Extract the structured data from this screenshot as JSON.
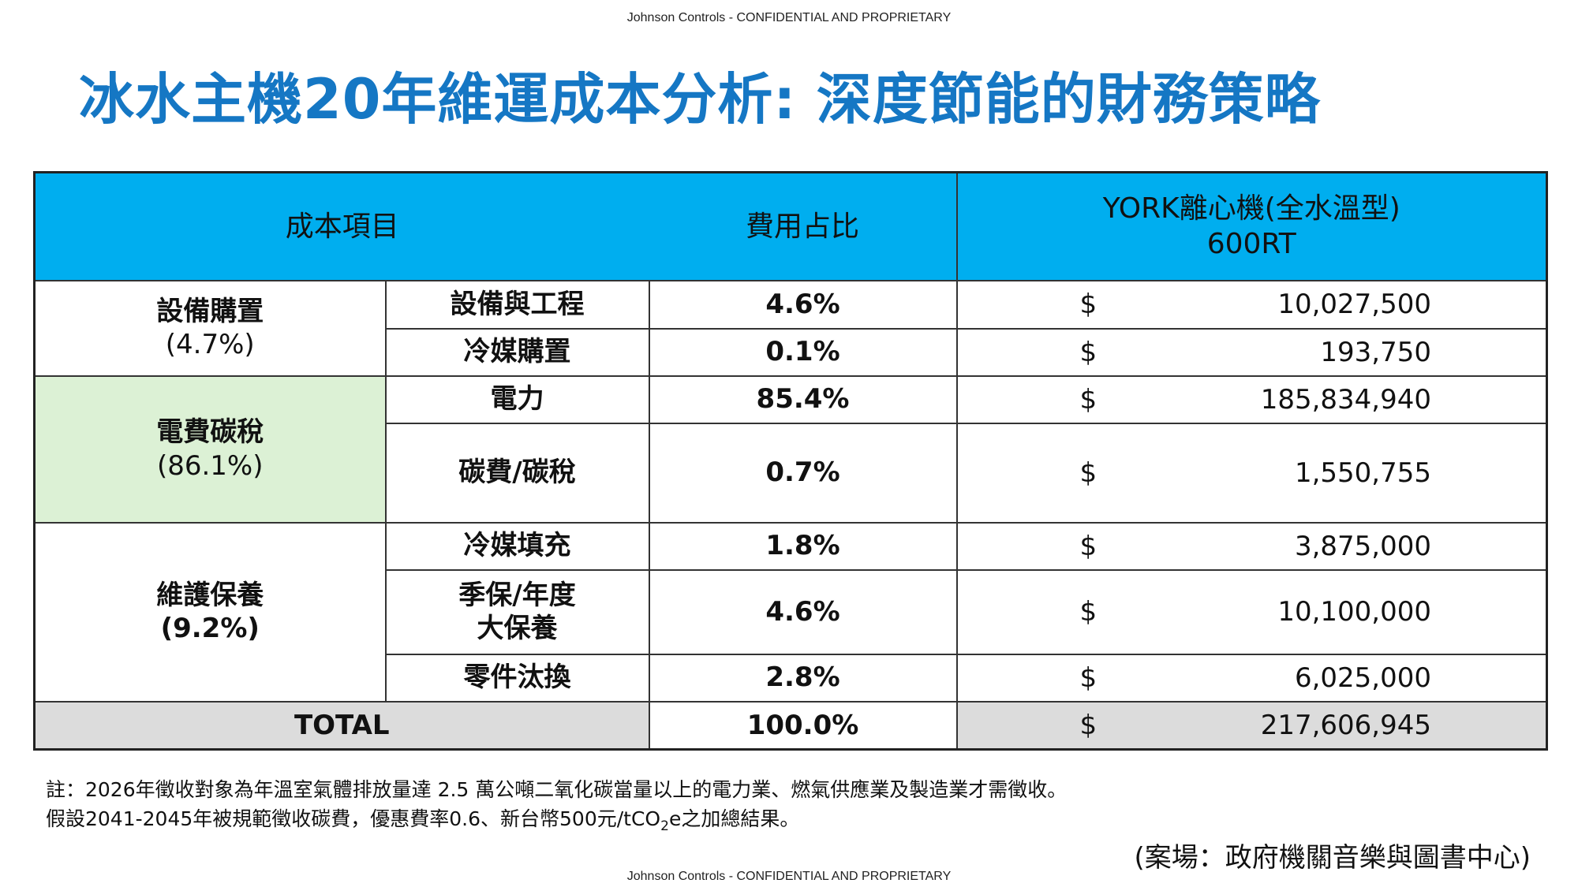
{
  "confidential": "Johnson Controls - CONFIDENTIAL AND PROPRIETARY",
  "title": "冰水主機20年維運成本分析: 深度節能的財務策略",
  "table": {
    "headers": {
      "cost_item": "成本項目",
      "ratio": "費用占比",
      "york_line1": "YORK離心機(全水溫型)",
      "york_line2": "600RT"
    },
    "groups": [
      {
        "label": "設備購置",
        "pct": "(4.7%)"
      },
      {
        "label": "電費碳稅",
        "pct": "(86.1%)"
      },
      {
        "label": "維護保養",
        "pct": "(9.2%)"
      }
    ],
    "rows": [
      {
        "item": "設備與工程",
        "ratio": "4.6%",
        "currency": "$",
        "amount": "10,027,500"
      },
      {
        "item": "冷媒購置",
        "ratio": "0.1%",
        "currency": "$",
        "amount": "193,750"
      },
      {
        "item": "電力",
        "ratio": "85.4%",
        "currency": "$",
        "amount": "185,834,940"
      },
      {
        "item": "碳費/碳稅",
        "ratio": "0.7%",
        "currency": "$",
        "amount": "1,550,755"
      },
      {
        "item": "冷媒填充",
        "ratio": "1.8%",
        "currency": "$",
        "amount": "3,875,000"
      },
      {
        "item_line1": "季保/年度",
        "item_line2": "大保養",
        "ratio": "4.6%",
        "currency": "$",
        "amount": "10,100,000"
      },
      {
        "item": "零件汰換",
        "ratio": "2.8%",
        "currency": "$",
        "amount": "6,025,000"
      }
    ],
    "total": {
      "label": "TOTAL",
      "ratio": "100.0%",
      "currency": "$",
      "amount": "217,606,945"
    }
  },
  "notes": {
    "line1": "註：2026年徵收對象為年溫室氣體排放量達 2.5 萬公噸二氧化碳當量以上的電力業、燃氣供應業及製造業才需徵收。",
    "line2_a": "假設2041-2045年被規範徵收碳費，優惠費率0.6、新台幣500元/tCO",
    "line2_sub": "2",
    "line2_b": "e之加總結果。"
  },
  "case_note": "(案場：政府機關音樂與圖書中心)",
  "colors": {
    "title_blue": "#1577c4",
    "header_cyan": "#00aeef",
    "group_green": "#dcf1d5",
    "total_gray": "#dcdcdc"
  }
}
